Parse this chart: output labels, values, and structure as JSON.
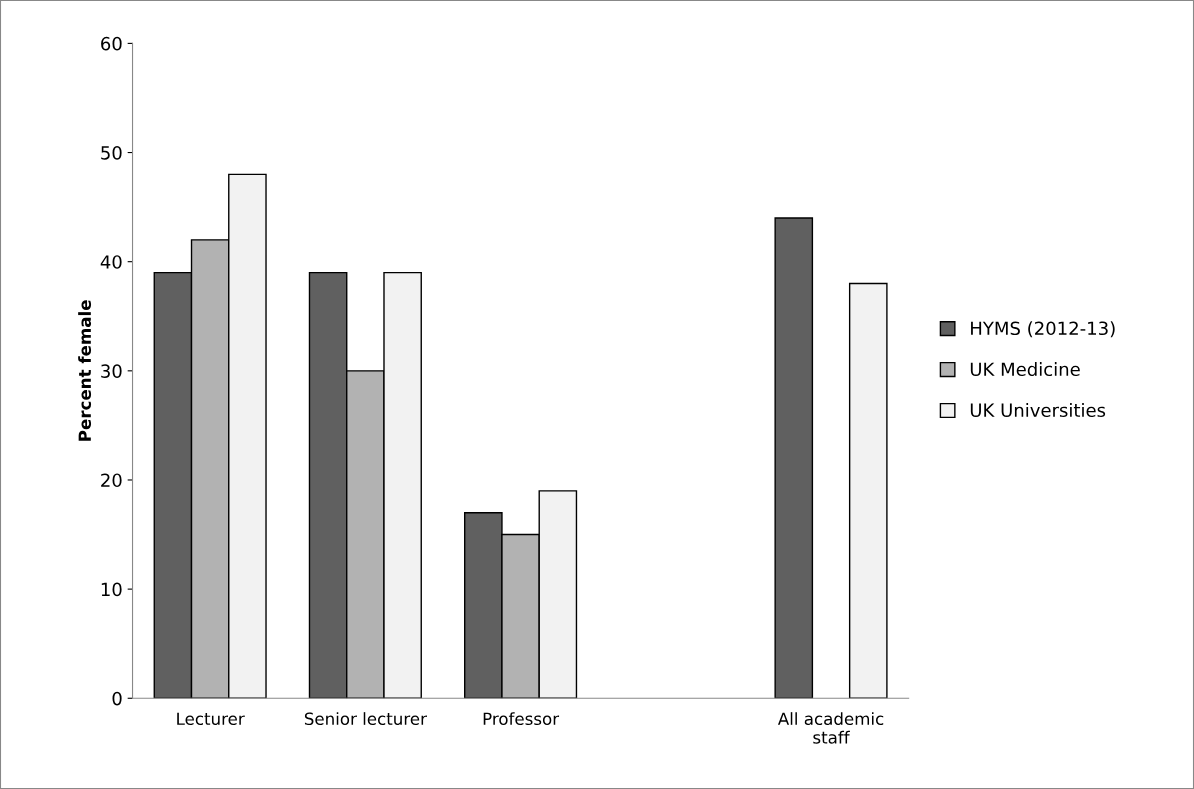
{
  "chart_data": {
    "type": "bar",
    "ylabel": "Percent female",
    "categories": [
      "Lecturer",
      "Senior lecturer",
      "Professor",
      null,
      "All academic\nstaff"
    ],
    "series": [
      {
        "name": "HYMS (2012-13)",
        "color": "#606060",
        "values": [
          39,
          39,
          17,
          null,
          44
        ]
      },
      {
        "name": "UK Medicine",
        "color": "#b2b2b2",
        "values": [
          42,
          30,
          15,
          null,
          null
        ]
      },
      {
        "name": "UK Universities",
        "color": "#f2f2f2",
        "values": [
          48,
          39,
          19,
          null,
          38
        ]
      }
    ],
    "ylim": [
      0,
      60
    ],
    "yticks": [
      0,
      10,
      20,
      30,
      40,
      50,
      60
    ],
    "grid": false,
    "legend": "right"
  }
}
